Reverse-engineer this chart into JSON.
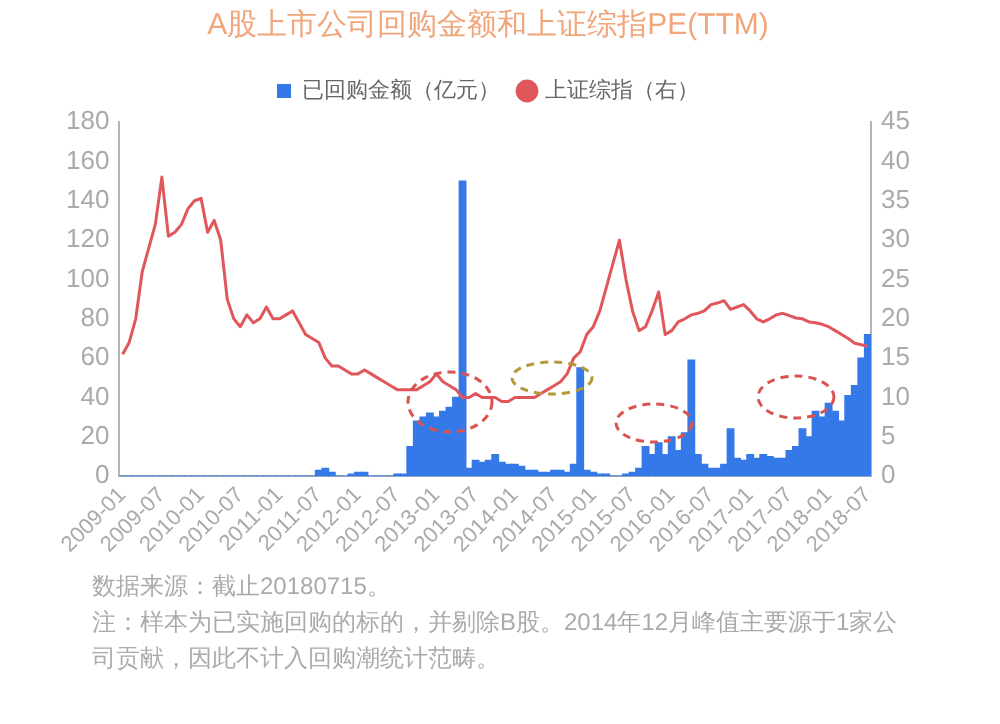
{
  "chart_data": {
    "type": "bar",
    "title": "A股上市公司回购金额和上证综指PE(TTM)",
    "categories": [
      "2009-01",
      null,
      null,
      null,
      null,
      null,
      "2009-07",
      null,
      null,
      null,
      null,
      null,
      "2010-01",
      null,
      null,
      null,
      null,
      null,
      "2010-07",
      null,
      null,
      null,
      null,
      null,
      "2011-01",
      null,
      null,
      null,
      null,
      null,
      "2011-07",
      null,
      null,
      null,
      null,
      null,
      "2012-01",
      null,
      null,
      null,
      null,
      null,
      "2012-07",
      null,
      null,
      null,
      null,
      null,
      "2013-01",
      null,
      null,
      null,
      null,
      null,
      "2013-07",
      null,
      null,
      null,
      null,
      null,
      "2014-01",
      null,
      null,
      null,
      null,
      null,
      "2014-07",
      null,
      null,
      null,
      null,
      null,
      "2015-01",
      null,
      null,
      null,
      null,
      null,
      "2015-07",
      null,
      null,
      null,
      null,
      null,
      "2016-01",
      null,
      null,
      null,
      null,
      null,
      "2016-07",
      null,
      null,
      null,
      null,
      null,
      "2017-01",
      null,
      null,
      null,
      null,
      null,
      "2017-07",
      null,
      null,
      null,
      null,
      null,
      "2018-01",
      null,
      null,
      null,
      null,
      null,
      "2018-07"
    ],
    "series": [
      {
        "name": "已回购金额（亿元）",
        "color": "#3579e8",
        "values": [
          0,
          0,
          0,
          0,
          0,
          0,
          0,
          0,
          0,
          0,
          0,
          0,
          0,
          0,
          0,
          0,
          0,
          0,
          0,
          0,
          0,
          0,
          0,
          0,
          0,
          0,
          0,
          0,
          0,
          0,
          3,
          4,
          2,
          0,
          0,
          1,
          2,
          2,
          0,
          0,
          0,
          0,
          1,
          1,
          15,
          28,
          30,
          32,
          30,
          33,
          35,
          40,
          150,
          4,
          8,
          7,
          8,
          11,
          7,
          6,
          6,
          5,
          3,
          3,
          2,
          2,
          3,
          3,
          2,
          6,
          55,
          3,
          2,
          1,
          1,
          0,
          0,
          1,
          2,
          4,
          15,
          11,
          17,
          11,
          20,
          13,
          22,
          59,
          11,
          6,
          4,
          4,
          6,
          24,
          9,
          8,
          11,
          9,
          11,
          10,
          9,
          9,
          13,
          15,
          24,
          20,
          33,
          30,
          37,
          33,
          28,
          41,
          46,
          60,
          72
        ]
      },
      {
        "name": "上证综指（右）",
        "type": "line",
        "axis": "y2",
        "color": "#e0575b",
        "values": [
          15.5,
          17,
          20,
          26,
          29,
          32,
          38,
          30.5,
          31,
          32,
          34,
          35,
          35.3,
          31,
          32.5,
          30,
          22.5,
          20,
          19,
          20.5,
          19.5,
          20,
          21.5,
          20,
          20,
          20.5,
          21,
          19.5,
          18,
          17.5,
          17,
          15,
          14,
          14,
          13.5,
          13,
          13,
          13.5,
          13,
          12.5,
          12,
          11.5,
          11,
          11,
          11,
          11,
          11.5,
          12,
          13,
          12,
          11.5,
          11,
          10,
          10,
          10.5,
          10,
          10,
          10,
          9.5,
          9.5,
          10,
          10,
          10,
          10,
          10.5,
          11,
          11.5,
          12,
          13,
          15,
          15.8,
          18,
          19,
          21,
          24,
          27,
          30,
          25,
          21,
          18.5,
          19,
          21,
          23.4,
          18,
          18.5,
          19.6,
          20,
          20.5,
          20.7,
          21,
          21.8,
          22,
          22.3,
          21.2,
          21.5,
          21.8,
          21,
          20,
          19.6,
          20,
          20.5,
          20.7,
          20.4,
          20.1,
          20,
          19.6,
          19.5,
          19.3,
          19,
          18.5,
          18,
          17.5,
          16.9,
          16.7,
          16.5
        ]
      }
    ],
    "ylim": [
      0,
      180
    ],
    "yticks": [
      0,
      20,
      40,
      60,
      80,
      100,
      120,
      140,
      160,
      180
    ],
    "y2lim": [
      0,
      45
    ],
    "y2ticks": [
      0,
      5,
      10,
      15,
      20,
      25,
      30,
      35,
      40,
      45
    ],
    "grid": false,
    "legend": "top",
    "marker": "none",
    "annotations": [
      "数据来源：截止20180715。",
      "注：样本为已实施回购的标的，并剔除B股。2014年12月峰值主要源于1家公司贡献，因此不计入回购潮统计范畴。"
    ]
  }
}
